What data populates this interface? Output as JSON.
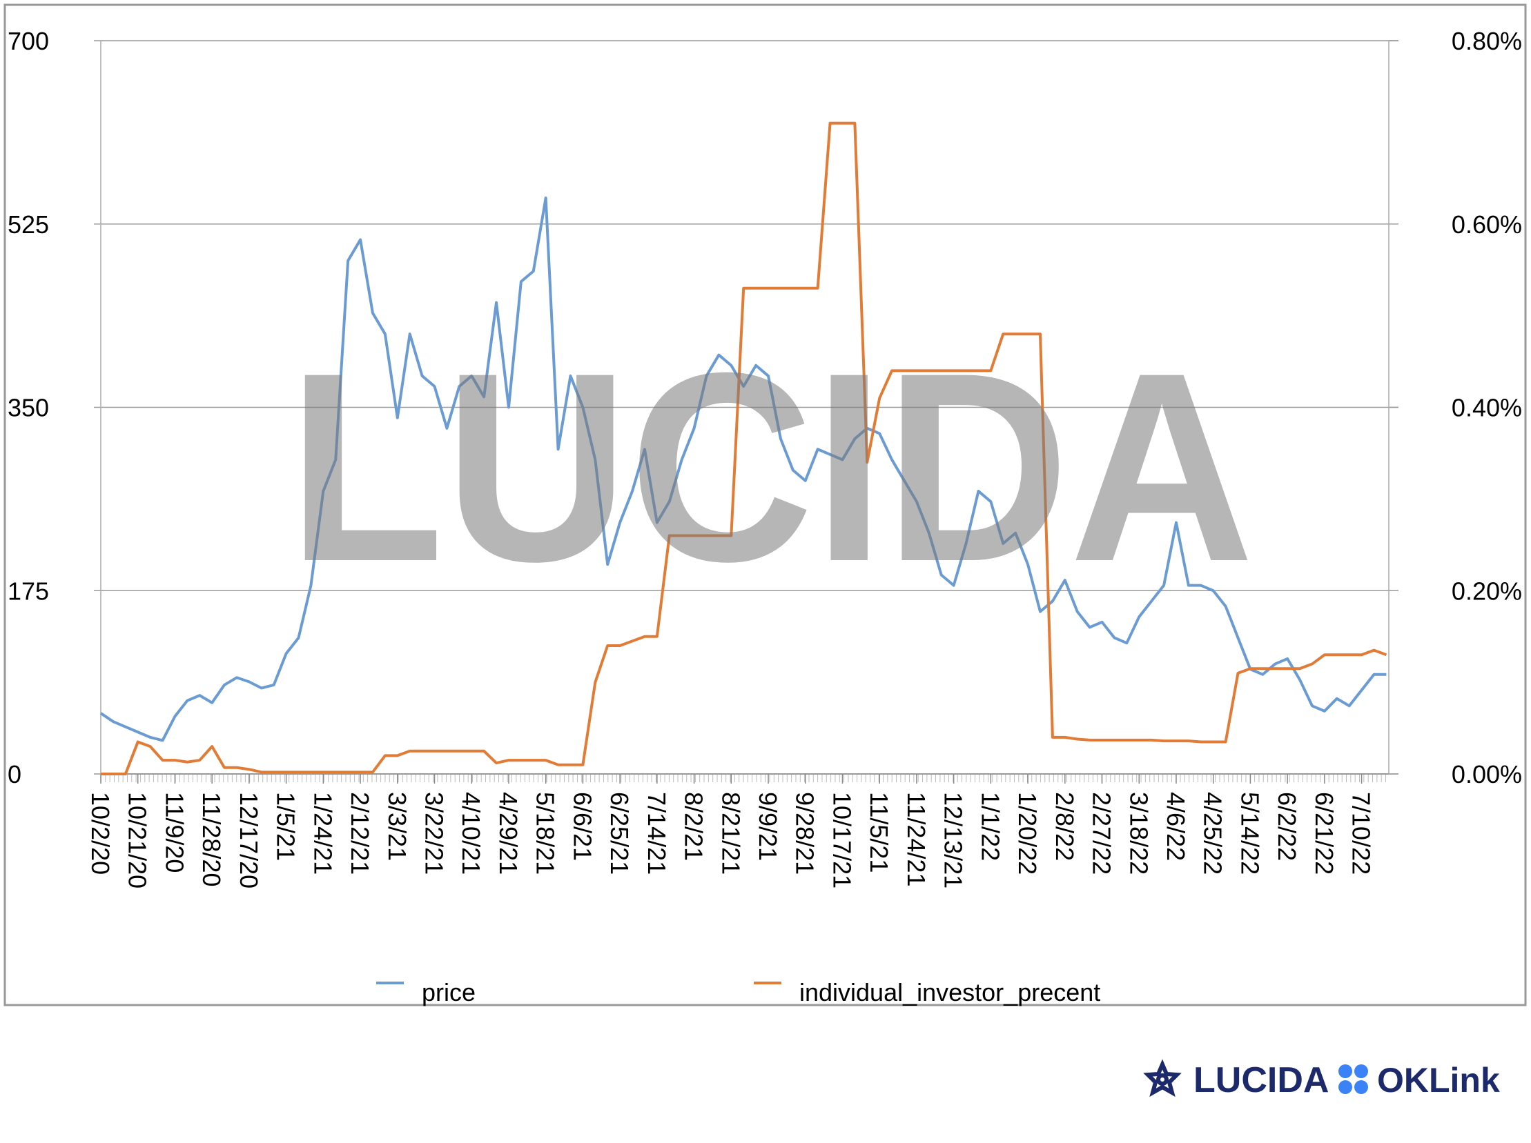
{
  "chart_data": {
    "type": "line",
    "categories": [
      "10/2/20",
      null,
      null,
      "10/21/20",
      null,
      null,
      "11/9/20",
      null,
      null,
      "11/28/20",
      null,
      null,
      "12/17/20",
      null,
      null,
      "1/5/21",
      null,
      null,
      "1/24/21",
      null,
      null,
      "2/12/21",
      null,
      null,
      "3/3/21",
      null,
      null,
      "3/22/21",
      null,
      null,
      "4/10/21",
      null,
      null,
      "4/29/21",
      null,
      null,
      "5/18/21",
      null,
      null,
      "6/6/21",
      null,
      null,
      "6/25/21",
      null,
      null,
      "7/14/21",
      null,
      null,
      "8/2/21",
      null,
      null,
      "8/21/21",
      null,
      null,
      "9/9/21",
      null,
      null,
      "9/28/21",
      null,
      null,
      "10/17/21",
      null,
      null,
      "11/5/21",
      null,
      null,
      "11/24/21",
      null,
      null,
      "12/13/21",
      null,
      null,
      "1/1/22",
      null,
      null,
      "1/20/22",
      null,
      null,
      "2/8/22",
      null,
      null,
      "2/27/22",
      null,
      null,
      "3/18/22",
      null,
      null,
      "4/6/22",
      null,
      null,
      "4/25/22",
      null,
      null,
      "5/14/22",
      null,
      null,
      "6/2/22",
      null,
      null,
      "6/21/22",
      null,
      null,
      "7/10/22",
      null,
      null
    ],
    "series": [
      {
        "name": "price",
        "color": "#6a9bd3",
        "values": [
          58,
          50,
          45,
          40,
          35,
          32,
          55,
          70,
          75,
          68,
          85,
          92,
          88,
          82,
          85,
          115,
          130,
          180,
          270,
          300,
          490,
          510,
          440,
          420,
          340,
          420,
          380,
          370,
          330,
          370,
          380,
          360,
          450,
          350,
          470,
          480,
          550,
          310,
          380,
          350,
          300,
          200,
          240,
          270,
          310,
          240,
          260,
          300,
          330,
          380,
          400,
          390,
          370,
          390,
          380,
          320,
          290,
          280,
          310,
          305,
          300,
          320,
          330,
          325,
          300,
          280,
          260,
          230,
          190,
          180,
          220,
          270,
          260,
          220,
          230,
          200,
          155,
          165,
          185,
          155,
          140,
          145,
          130,
          125,
          150,
          165,
          180,
          240,
          180,
          180,
          175,
          160,
          130,
          100,
          95,
          105,
          110,
          90,
          65,
          60,
          72,
          65,
          80,
          95,
          95
        ]
      },
      {
        "name": "individual_investor_precent",
        "color": "#e27b36",
        "axis": "y2",
        "values": [
          0,
          0,
          0,
          0.035,
          0.03,
          0.015,
          0.015,
          0.013,
          0.015,
          0.03,
          0.007,
          0.007,
          0.005,
          0.002,
          0.002,
          0.002,
          0.002,
          0.002,
          0.002,
          0.002,
          0.002,
          0.002,
          0.002,
          0.02,
          0.02,
          0.025,
          0.025,
          0.025,
          0.025,
          0.025,
          0.025,
          0.025,
          0.012,
          0.015,
          0.015,
          0.015,
          0.015,
          0.01,
          0.01,
          0.01,
          0.1,
          0.14,
          0.14,
          0.145,
          0.15,
          0.15,
          0.26,
          0.26,
          0.26,
          0.26,
          0.26,
          0.26,
          0.53,
          0.53,
          0.53,
          0.53,
          0.53,
          0.53,
          0.53,
          0.71,
          0.71,
          0.71,
          0.34,
          0.41,
          0.44,
          0.44,
          0.44,
          0.44,
          0.44,
          0.44,
          0.44,
          0.44,
          0.44,
          0.48,
          0.48,
          0.48,
          0.48,
          0.04,
          0.04,
          0.038,
          0.037,
          0.037,
          0.037,
          0.037,
          0.037,
          0.037,
          0.036,
          0.036,
          0.036,
          0.035,
          0.035,
          0.035,
          0.11,
          0.115,
          0.115,
          0.115,
          0.115,
          0.115,
          0.12,
          0.13,
          0.13,
          0.13,
          0.13,
          0.135,
          0.13
        ]
      }
    ],
    "ylim": [
      0,
      700
    ],
    "yticks": [
      0,
      175,
      350,
      525,
      700
    ],
    "y2lim": [
      0,
      0.8
    ],
    "y2ticks": [
      {
        "value": 0,
        "label": "0.00%"
      },
      {
        "value": 0.2,
        "label": "0.20%"
      },
      {
        "value": 0.4,
        "label": "0.40%"
      },
      {
        "value": 0.6,
        "label": "0.60%"
      },
      {
        "value": 0.8,
        "label": "0.80%"
      }
    ],
    "grid": true,
    "legend": "bottom",
    "watermark": "LUCIDA"
  },
  "logos": [
    "LUCIDA",
    "OKLink"
  ]
}
